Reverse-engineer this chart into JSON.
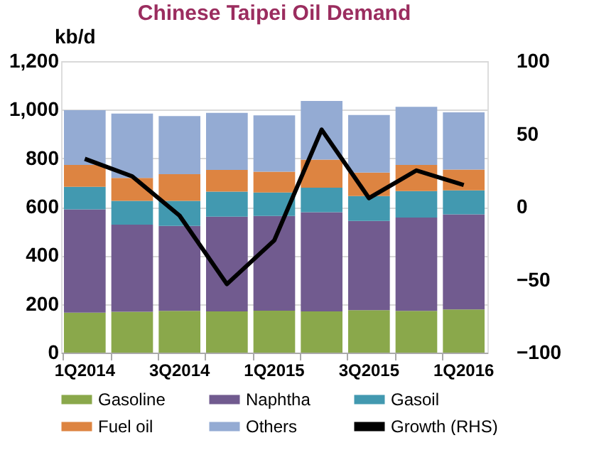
{
  "chart_data": {
    "type": "bar",
    "title": "Chinese Taipei Oil Demand",
    "ylabel": "kb/d",
    "stacked": true,
    "categories": [
      "1Q2014",
      null,
      "3Q2014",
      null,
      "1Q2015",
      null,
      "3Q2015",
      null,
      "1Q2016"
    ],
    "series": [
      {
        "name": "Gasoline",
        "color": "#8aa84b",
        "values": [
          165,
          168,
          172,
          170,
          173,
          170,
          175,
          172,
          178
        ]
      },
      {
        "name": "Naphtha",
        "color": "#715b8f",
        "values": [
          425,
          359,
          350,
          390,
          390,
          408,
          367,
          384,
          391
        ]
      },
      {
        "name": "Gasoil",
        "color": "#4299b0",
        "values": [
          93,
          98,
          103,
          103,
          96,
          101,
          103,
          109,
          99
        ]
      },
      {
        "name": "Fuel oil",
        "color": "#dd8441",
        "values": [
          90,
          94,
          110,
          89,
          86,
          116,
          96,
          108,
          86
        ]
      },
      {
        "name": "Others",
        "color": "#94abd3",
        "values": [
          225,
          265,
          239,
          235,
          232,
          241,
          237,
          239,
          235
        ]
      },
      {
        "name": "Growth (RHS)",
        "color": "#000000",
        "type": "line",
        "axis": "y2",
        "values": [
          33,
          21,
          -6,
          -53,
          -23,
          53,
          6,
          25,
          15
        ]
      }
    ],
    "ylim": [
      0,
      1200
    ],
    "yticks": [
      0,
      200,
      400,
      600,
      800,
      {
        "value": 1000,
        "label": "1,000"
      },
      {
        "value": 1200,
        "label": "1,200"
      }
    ],
    "y2lim": [
      -100,
      100
    ],
    "y2ticks": [
      -100,
      -50,
      0,
      50,
      100
    ],
    "grid": "y",
    "legend": "bottom"
  }
}
